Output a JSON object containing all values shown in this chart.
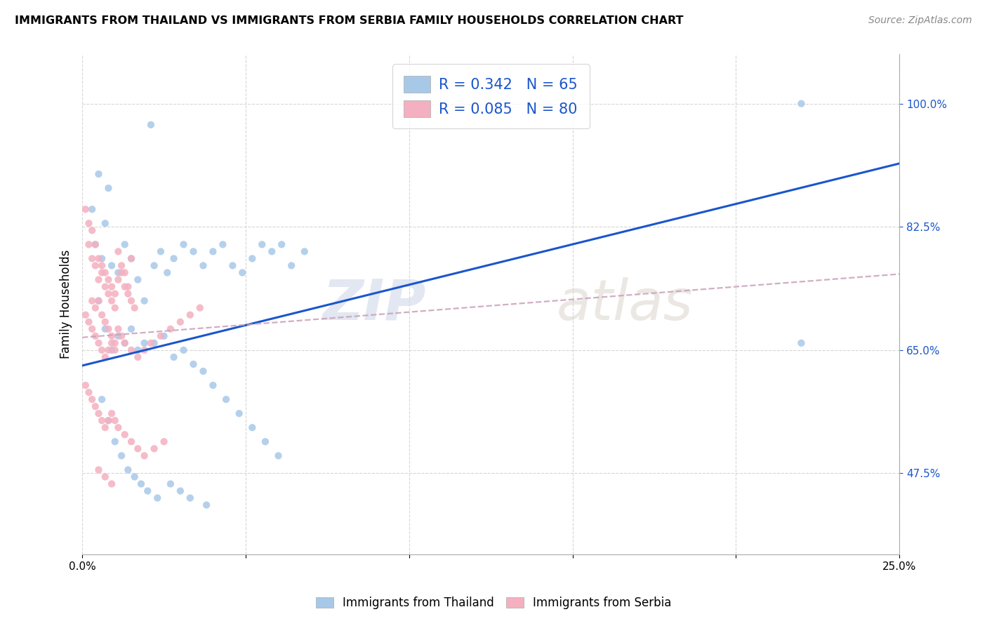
{
  "title": "IMMIGRANTS FROM THAILAND VS IMMIGRANTS FROM SERBIA FAMILY HOUSEHOLDS CORRELATION CHART",
  "source": "Source: ZipAtlas.com",
  "ylabel": "Family Households",
  "yticks": [
    "47.5%",
    "65.0%",
    "82.5%",
    "100.0%"
  ],
  "ytick_values": [
    0.475,
    0.65,
    0.825,
    1.0
  ],
  "xlim": [
    0.0,
    0.25
  ],
  "ylim": [
    0.36,
    1.07
  ],
  "legend_R1": "0.342",
  "legend_N1": "65",
  "legend_R2": "0.085",
  "legend_N2": "80",
  "color_thailand": "#a8c8e8",
  "color_serbia": "#f4b0c0",
  "color_line_thailand": "#1a56cc",
  "color_line_serbia": "#c8a0b8",
  "watermark_zip": "ZIP",
  "watermark_atlas": "atlas",
  "thai_line_x": [
    0.0,
    0.25
  ],
  "thai_line_y": [
    0.628,
    0.915
  ],
  "serb_line_x": [
    0.0,
    0.25
  ],
  "serb_line_y": [
    0.668,
    0.758
  ],
  "thailand_x": [
    0.021,
    0.005,
    0.008,
    0.003,
    0.007,
    0.004,
    0.006,
    0.009,
    0.011,
    0.013,
    0.015,
    0.017,
    0.019,
    0.022,
    0.024,
    0.026,
    0.028,
    0.031,
    0.034,
    0.037,
    0.04,
    0.043,
    0.046,
    0.049,
    0.052,
    0.055,
    0.058,
    0.061,
    0.064,
    0.068,
    0.005,
    0.007,
    0.009,
    0.011,
    0.013,
    0.015,
    0.017,
    0.019,
    0.022,
    0.025,
    0.028,
    0.031,
    0.034,
    0.037,
    0.04,
    0.044,
    0.048,
    0.052,
    0.056,
    0.06,
    0.006,
    0.008,
    0.01,
    0.012,
    0.014,
    0.016,
    0.018,
    0.02,
    0.023,
    0.027,
    0.03,
    0.033,
    0.038,
    0.22,
    0.22
  ],
  "thailand_y": [
    0.97,
    0.9,
    0.88,
    0.85,
    0.83,
    0.8,
    0.78,
    0.77,
    0.76,
    0.8,
    0.78,
    0.75,
    0.72,
    0.77,
    0.79,
    0.76,
    0.78,
    0.8,
    0.79,
    0.77,
    0.79,
    0.8,
    0.77,
    0.76,
    0.78,
    0.8,
    0.79,
    0.8,
    0.77,
    0.79,
    0.72,
    0.68,
    0.65,
    0.67,
    0.66,
    0.68,
    0.65,
    0.66,
    0.66,
    0.67,
    0.64,
    0.65,
    0.63,
    0.62,
    0.6,
    0.58,
    0.56,
    0.54,
    0.52,
    0.5,
    0.58,
    0.55,
    0.52,
    0.5,
    0.48,
    0.47,
    0.46,
    0.45,
    0.44,
    0.46,
    0.45,
    0.44,
    0.43,
    1.0,
    0.66
  ],
  "serbia_x": [
    0.001,
    0.002,
    0.003,
    0.004,
    0.005,
    0.006,
    0.007,
    0.008,
    0.009,
    0.01,
    0.011,
    0.012,
    0.013,
    0.014,
    0.015,
    0.002,
    0.003,
    0.004,
    0.005,
    0.006,
    0.007,
    0.008,
    0.009,
    0.01,
    0.011,
    0.012,
    0.013,
    0.014,
    0.015,
    0.016,
    0.001,
    0.002,
    0.003,
    0.004,
    0.005,
    0.006,
    0.007,
    0.008,
    0.009,
    0.01,
    0.003,
    0.004,
    0.005,
    0.006,
    0.007,
    0.008,
    0.009,
    0.01,
    0.011,
    0.012,
    0.013,
    0.015,
    0.017,
    0.019,
    0.021,
    0.024,
    0.027,
    0.03,
    0.033,
    0.036,
    0.001,
    0.002,
    0.003,
    0.004,
    0.005,
    0.006,
    0.007,
    0.008,
    0.009,
    0.01,
    0.011,
    0.013,
    0.015,
    0.017,
    0.019,
    0.022,
    0.025,
    0.005,
    0.007,
    0.009
  ],
  "serbia_y": [
    0.85,
    0.83,
    0.82,
    0.8,
    0.78,
    0.76,
    0.74,
    0.73,
    0.72,
    0.71,
    0.79,
    0.77,
    0.76,
    0.74,
    0.78,
    0.8,
    0.78,
    0.77,
    0.75,
    0.77,
    0.76,
    0.75,
    0.74,
    0.73,
    0.75,
    0.76,
    0.74,
    0.73,
    0.72,
    0.71,
    0.7,
    0.69,
    0.68,
    0.67,
    0.66,
    0.65,
    0.64,
    0.65,
    0.66,
    0.65,
    0.72,
    0.71,
    0.72,
    0.7,
    0.69,
    0.68,
    0.67,
    0.66,
    0.68,
    0.67,
    0.66,
    0.65,
    0.64,
    0.65,
    0.66,
    0.67,
    0.68,
    0.69,
    0.7,
    0.71,
    0.6,
    0.59,
    0.58,
    0.57,
    0.56,
    0.55,
    0.54,
    0.55,
    0.56,
    0.55,
    0.54,
    0.53,
    0.52,
    0.51,
    0.5,
    0.51,
    0.52,
    0.48,
    0.47,
    0.46
  ]
}
